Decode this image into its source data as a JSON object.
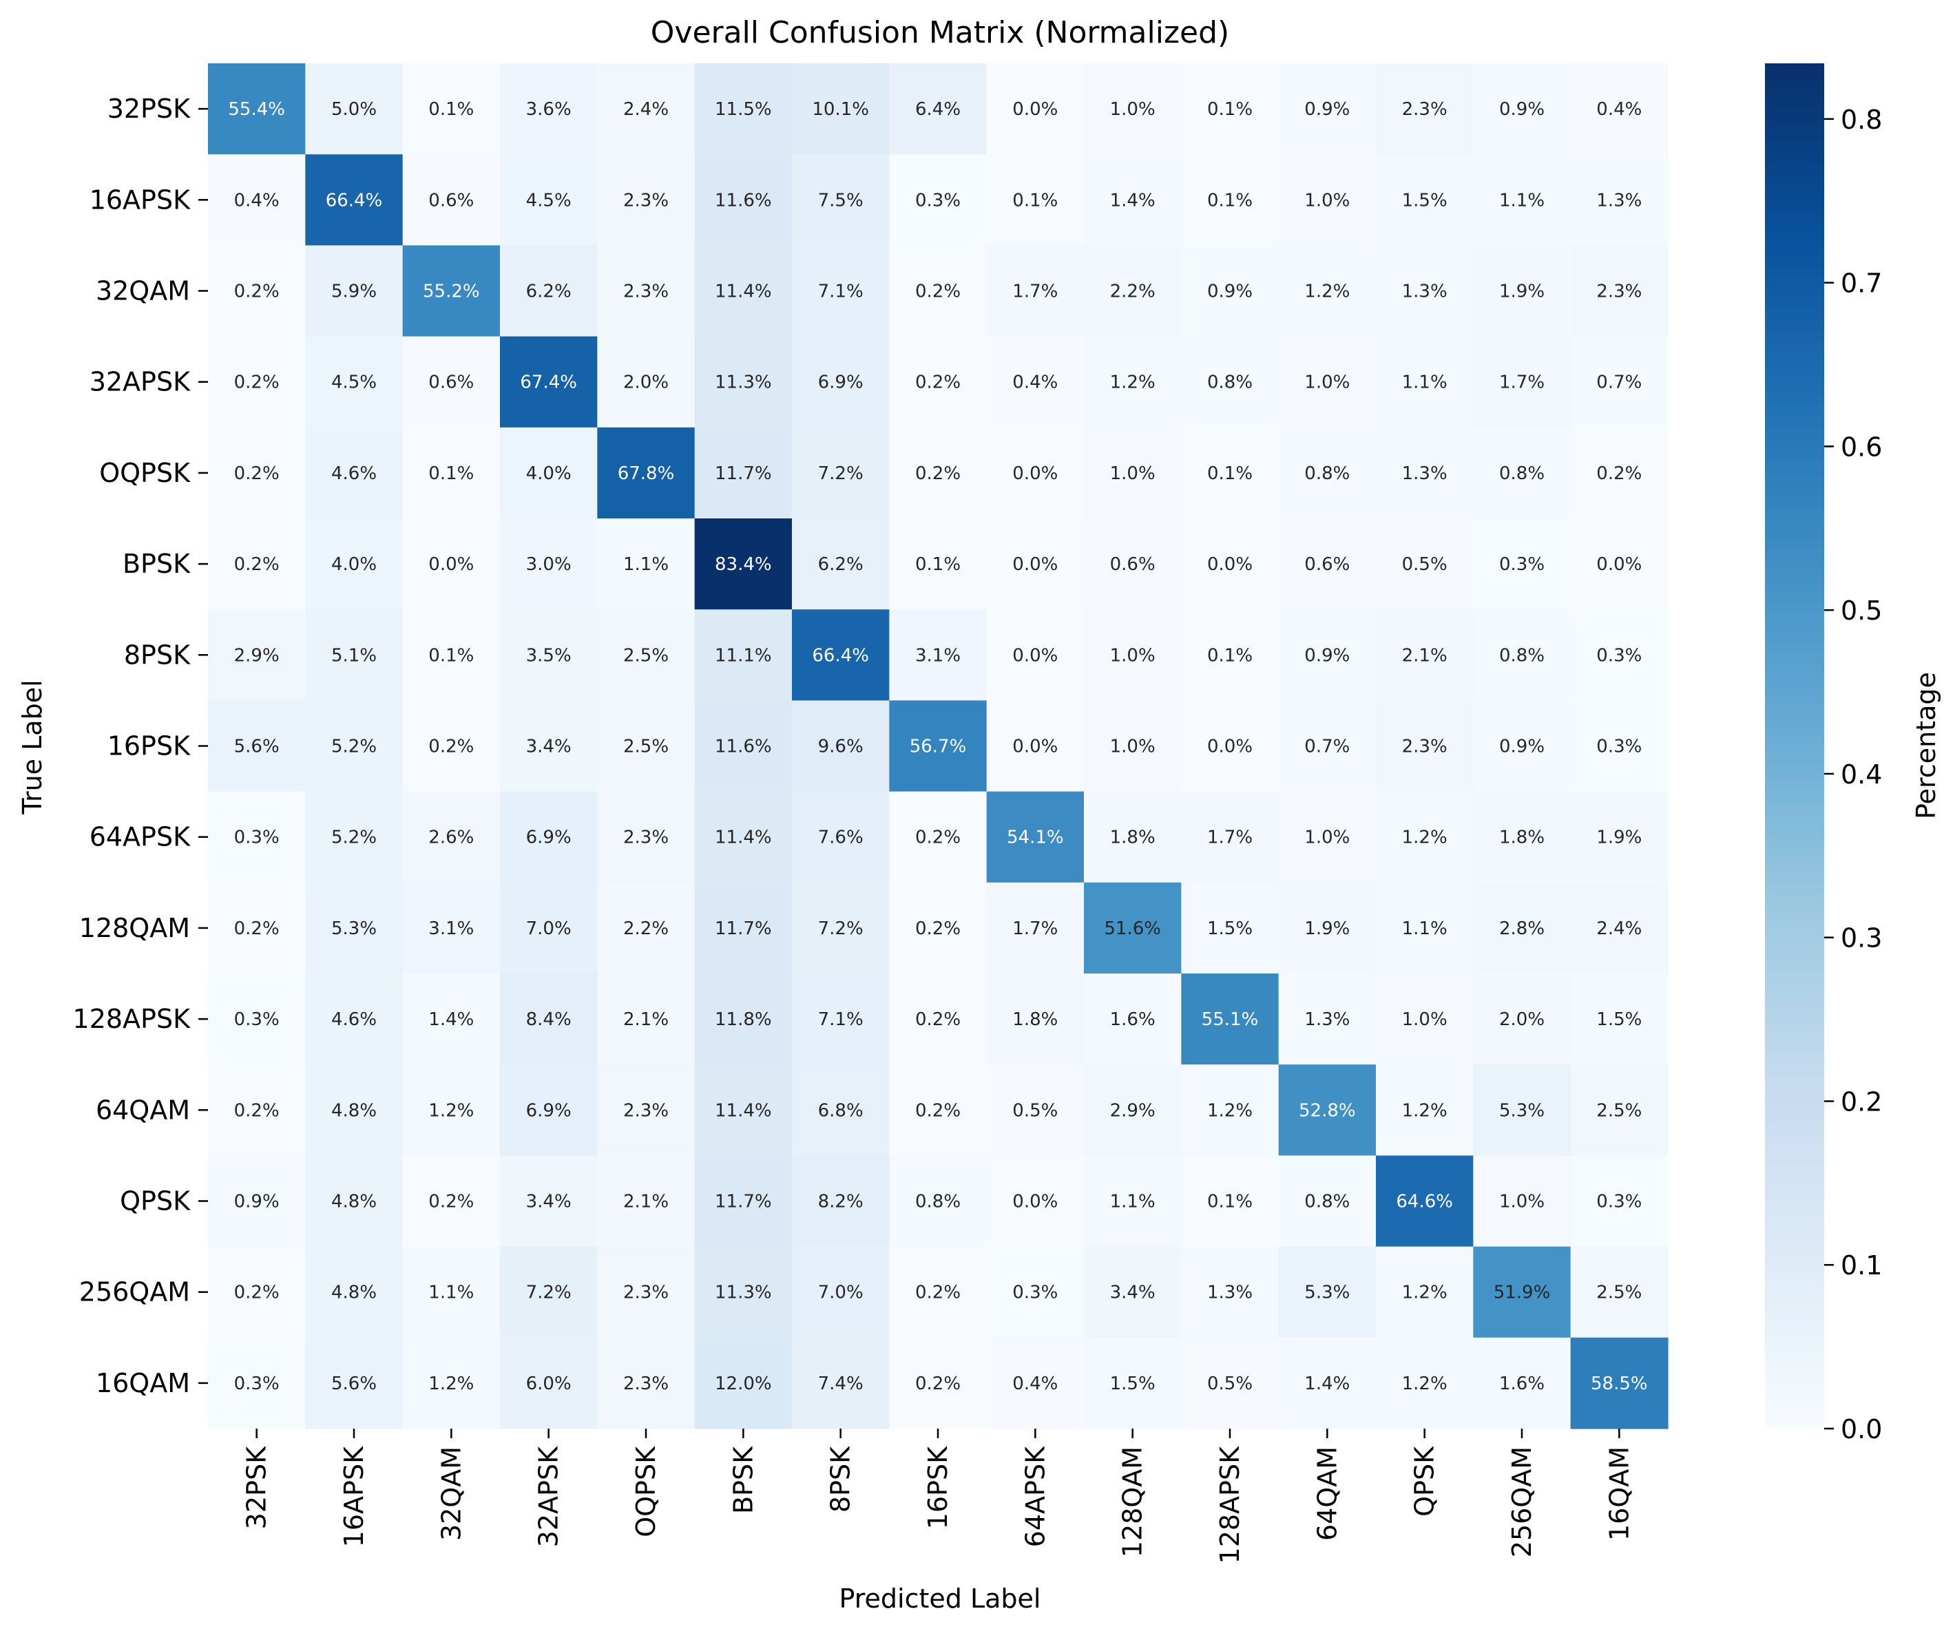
{
  "chart_data": {
    "type": "heatmap",
    "title": "Overall Confusion Matrix (Normalized)",
    "xlabel": "Predicted Label",
    "ylabel": "True Label",
    "colorbar_label": "Percentage",
    "colorbar_ticks": [
      "0.0",
      "0.1",
      "0.2",
      "0.3",
      "0.4",
      "0.5",
      "0.6",
      "0.7",
      "0.8"
    ],
    "colorbar_range": [
      0.0,
      0.834
    ],
    "colormap": [
      "#f7fbff",
      "#deebf7",
      "#c6dbef",
      "#9ecae1",
      "#6baed6",
      "#4292c6",
      "#2171b5",
      "#08519c",
      "#08306b"
    ],
    "labels": [
      "32PSK",
      "16APSK",
      "32QAM",
      "32APSK",
      "OQPSK",
      "BPSK",
      "8PSK",
      "16PSK",
      "64APSK",
      "128QAM",
      "128APSK",
      "64QAM",
      "QPSK",
      "256QAM",
      "16QAM"
    ],
    "values": [
      [
        55.4,
        5.0,
        0.1,
        3.6,
        2.4,
        11.5,
        10.1,
        6.4,
        0.0,
        1.0,
        0.1,
        0.9,
        2.3,
        0.9,
        0.4
      ],
      [
        0.4,
        66.4,
        0.6,
        4.5,
        2.3,
        11.6,
        7.5,
        0.3,
        0.1,
        1.4,
        0.1,
        1.0,
        1.5,
        1.1,
        1.3
      ],
      [
        0.2,
        5.9,
        55.2,
        6.2,
        2.3,
        11.4,
        7.1,
        0.2,
        1.7,
        2.2,
        0.9,
        1.2,
        1.3,
        1.9,
        2.3
      ],
      [
        0.2,
        4.5,
        0.6,
        67.4,
        2.0,
        11.3,
        6.9,
        0.2,
        0.4,
        1.2,
        0.8,
        1.0,
        1.1,
        1.7,
        0.7
      ],
      [
        0.2,
        4.6,
        0.1,
        4.0,
        67.8,
        11.7,
        7.2,
        0.2,
        0.0,
        1.0,
        0.1,
        0.8,
        1.3,
        0.8,
        0.2
      ],
      [
        0.2,
        4.0,
        0.0,
        3.0,
        1.1,
        83.4,
        6.2,
        0.1,
        0.0,
        0.6,
        0.0,
        0.6,
        0.5,
        0.3,
        0.0
      ],
      [
        2.9,
        5.1,
        0.1,
        3.5,
        2.5,
        11.1,
        66.4,
        3.1,
        0.0,
        1.0,
        0.1,
        0.9,
        2.1,
        0.8,
        0.3
      ],
      [
        5.6,
        5.2,
        0.2,
        3.4,
        2.5,
        11.6,
        9.6,
        56.7,
        0.0,
        1.0,
        0.0,
        0.7,
        2.3,
        0.9,
        0.3
      ],
      [
        0.3,
        5.2,
        2.6,
        6.9,
        2.3,
        11.4,
        7.6,
        0.2,
        54.1,
        1.8,
        1.7,
        1.0,
        1.2,
        1.8,
        1.9
      ],
      [
        0.2,
        5.3,
        3.1,
        7.0,
        2.2,
        11.7,
        7.2,
        0.2,
        1.7,
        51.6,
        1.5,
        1.9,
        1.1,
        2.8,
        2.4
      ],
      [
        0.3,
        4.6,
        1.4,
        8.4,
        2.1,
        11.8,
        7.1,
        0.2,
        1.8,
        1.6,
        55.1,
        1.3,
        1.0,
        2.0,
        1.5
      ],
      [
        0.2,
        4.8,
        1.2,
        6.9,
        2.3,
        11.4,
        6.8,
        0.2,
        0.5,
        2.9,
        1.2,
        52.8,
        1.2,
        5.3,
        2.5
      ],
      [
        0.9,
        4.8,
        0.2,
        3.4,
        2.1,
        11.7,
        8.2,
        0.8,
        0.0,
        1.1,
        0.1,
        0.8,
        64.6,
        1.0,
        0.3
      ],
      [
        0.2,
        4.8,
        1.1,
        7.2,
        2.3,
        11.3,
        7.0,
        0.2,
        0.3,
        3.4,
        1.3,
        5.3,
        1.2,
        51.9,
        2.5
      ],
      [
        0.3,
        5.6,
        1.2,
        6.0,
        2.3,
        12.0,
        7.4,
        0.2,
        0.4,
        1.5,
        0.5,
        1.4,
        1.2,
        1.6,
        58.5
      ]
    ]
  }
}
